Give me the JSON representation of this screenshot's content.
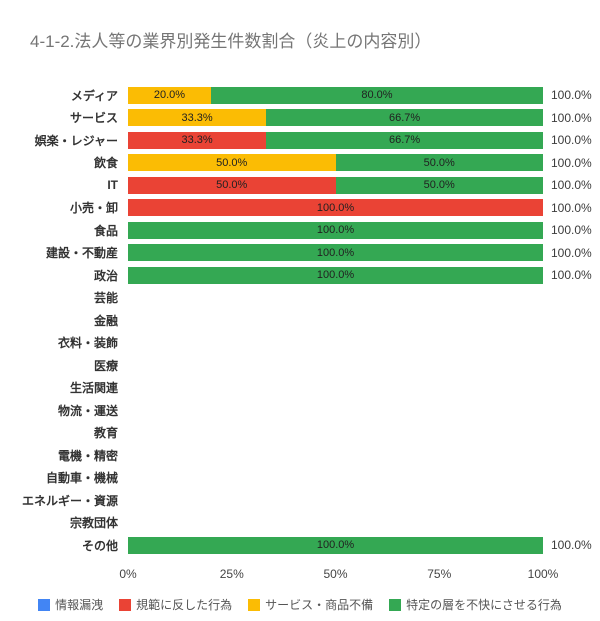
{
  "title": "4-1-2.法人等の業界別発生件数割合（炎上の内容別）",
  "colors": {
    "blue": "#4285F4",
    "red": "#EA4335",
    "yellow": "#FBBC04",
    "green": "#34A853"
  },
  "legend": [
    {
      "label": "情報漏洩",
      "color": "blue"
    },
    {
      "label": "規範に反した行為",
      "color": "red"
    },
    {
      "label": "サービス・商品不備",
      "color": "yellow"
    },
    {
      "label": "特定の層を不快にさせる行為",
      "color": "green"
    }
  ],
  "chart_data": {
    "type": "bar",
    "orientation": "horizontal",
    "stacked": true,
    "title": "4-1-2.法人等の業界別発生件数割合（炎上の内容別）",
    "xlim": [
      0,
      100
    ],
    "x_ticks": [
      "0%",
      "25%",
      "50%",
      "75%",
      "100%"
    ],
    "total_label": "100.0%",
    "categories": [
      "メディア",
      "サービス",
      "娯楽・レジャー",
      "飲食",
      "IT",
      "小売・卸",
      "食品",
      "建設・不動産",
      "政治",
      "芸能",
      "金融",
      "衣料・装飾",
      "医療",
      "生活関連",
      "物流・運送",
      "教育",
      "電機・精密",
      "自動車・機械",
      "エネルギー・資源",
      "宗教団体",
      "その他"
    ],
    "series": [
      {
        "name": "情報漏洩",
        "key": "info-leak",
        "color": "#4285F4",
        "values": [
          0,
          0,
          0,
          0,
          0,
          0,
          0,
          0,
          0,
          0,
          0,
          0,
          0,
          0,
          0,
          0,
          0,
          0,
          0,
          0,
          0
        ]
      },
      {
        "name": "規範に反した行為",
        "key": "norm-violation",
        "color": "#EA4335",
        "values": [
          0,
          0,
          33.3,
          0,
          50,
          100,
          0,
          0,
          0,
          0,
          0,
          0,
          0,
          0,
          0,
          0,
          0,
          0,
          0,
          0,
          0
        ]
      },
      {
        "name": "サービス・商品不備",
        "key": "service-product-defect",
        "color": "#FBBC04",
        "values": [
          20,
          33.3,
          0,
          50,
          0,
          0,
          0,
          0,
          0,
          0,
          0,
          0,
          0,
          0,
          0,
          0,
          0,
          0,
          0,
          0,
          0
        ]
      },
      {
        "name": "特定の層を不快にさせる行為",
        "key": "offend-specific-group",
        "color": "#34A853",
        "values": [
          80,
          66.7,
          66.7,
          50,
          50,
          0,
          100,
          100,
          100,
          0,
          0,
          0,
          0,
          0,
          0,
          0,
          0,
          0,
          0,
          0,
          100
        ]
      }
    ]
  }
}
